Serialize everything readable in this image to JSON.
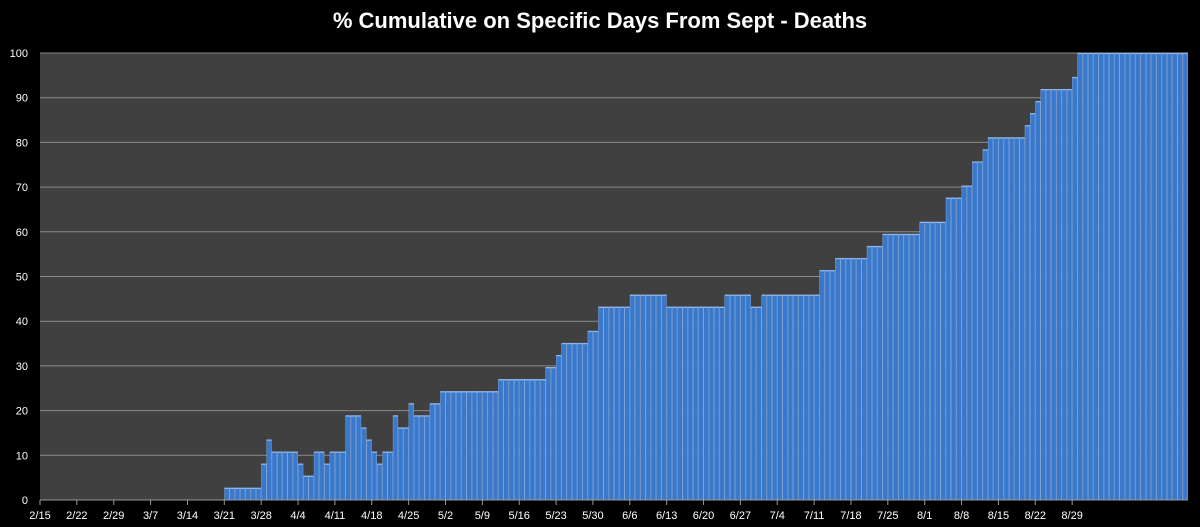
{
  "chart_data": {
    "type": "bar",
    "title": "%  Cumulative on Specific Days From Sept - Deaths",
    "xlabel": "",
    "ylabel": "",
    "ylim": [
      0,
      100
    ],
    "y_ticks": [
      0,
      10,
      20,
      30,
      40,
      50,
      60,
      70,
      80,
      90,
      100
    ],
    "x_tick_labels": [
      "2/15",
      "2/22",
      "2/29",
      "3/7",
      "3/14",
      "3/21",
      "3/28",
      "4/4",
      "4/11",
      "4/18",
      "4/25",
      "5/2",
      "5/9",
      "5/16",
      "5/23",
      "5/30",
      "6/6",
      "6/13",
      "6/20",
      "6/27",
      "7/4",
      "7/11",
      "7/18",
      "7/25",
      "8/1",
      "8/8",
      "8/15",
      "8/22",
      "8/29"
    ],
    "grid": true,
    "legend": "none",
    "start_date": "2/15",
    "colors": {
      "background": "#000000",
      "plot_area": "#404040",
      "bar": "#3a78cc",
      "bar_edge": "#8fb6ea",
      "gridline": "#8a8a8a",
      "text": "#ffffff"
    },
    "values": [
      0,
      0,
      0,
      0,
      0,
      0,
      0,
      0,
      0,
      0,
      0,
      0,
      0,
      0,
      0,
      0,
      0,
      0,
      0,
      0,
      0,
      0,
      0,
      0,
      0,
      0,
      0,
      0,
      0,
      0,
      0,
      0,
      0,
      0,
      0,
      2.7,
      2.7,
      2.7,
      2.7,
      2.7,
      2.7,
      2.7,
      8.1,
      13.5,
      10.8,
      10.8,
      10.8,
      10.8,
      10.8,
      8.1,
      5.4,
      5.4,
      10.8,
      10.8,
      8.1,
      10.8,
      10.8,
      10.8,
      18.9,
      18.9,
      18.9,
      16.2,
      13.5,
      10.8,
      8.1,
      10.8,
      10.8,
      18.9,
      16.2,
      16.2,
      21.6,
      18.9,
      18.9,
      18.9,
      21.6,
      21.6,
      24.3,
      24.3,
      24.3,
      24.3,
      24.3,
      24.3,
      24.3,
      24.3,
      24.3,
      24.3,
      24.3,
      27,
      27,
      27,
      27,
      27,
      27,
      27,
      27,
      27,
      29.7,
      29.7,
      32.4,
      35.1,
      35.1,
      35.1,
      35.1,
      35.1,
      37.8,
      37.8,
      43.2,
      43.2,
      43.2,
      43.2,
      43.2,
      43.2,
      45.9,
      45.9,
      45.9,
      45.9,
      45.9,
      45.9,
      45.9,
      43.2,
      43.2,
      43.2,
      43.2,
      43.2,
      43.2,
      43.2,
      43.2,
      43.2,
      43.2,
      43.2,
      45.9,
      45.9,
      45.9,
      45.9,
      45.9,
      43.2,
      43.2,
      45.9,
      45.9,
      45.9,
      45.9,
      45.9,
      45.9,
      45.9,
      45.9,
      45.9,
      45.9,
      45.9,
      51.4,
      51.4,
      51.4,
      54.1,
      54.1,
      54.1,
      54.1,
      54.1,
      54.1,
      56.8,
      56.8,
      56.8,
      59.5,
      59.5,
      59.5,
      59.5,
      59.5,
      59.5,
      59.5,
      62.2,
      62.2,
      62.2,
      62.2,
      62.2,
      67.6,
      67.6,
      67.6,
      70.3,
      70.3,
      75.7,
      75.7,
      78.4,
      81.1,
      81.1,
      81.1,
      81.1,
      81.1,
      81.1,
      81.1,
      83.8,
      86.5,
      89.2,
      91.9,
      91.9,
      91.9,
      91.9,
      91.9,
      91.9,
      94.6,
      100,
      100,
      100,
      100,
      100,
      100,
      100,
      100,
      100,
      100,
      100,
      100,
      100,
      100,
      100,
      100,
      100,
      100,
      100,
      100,
      100
    ]
  }
}
